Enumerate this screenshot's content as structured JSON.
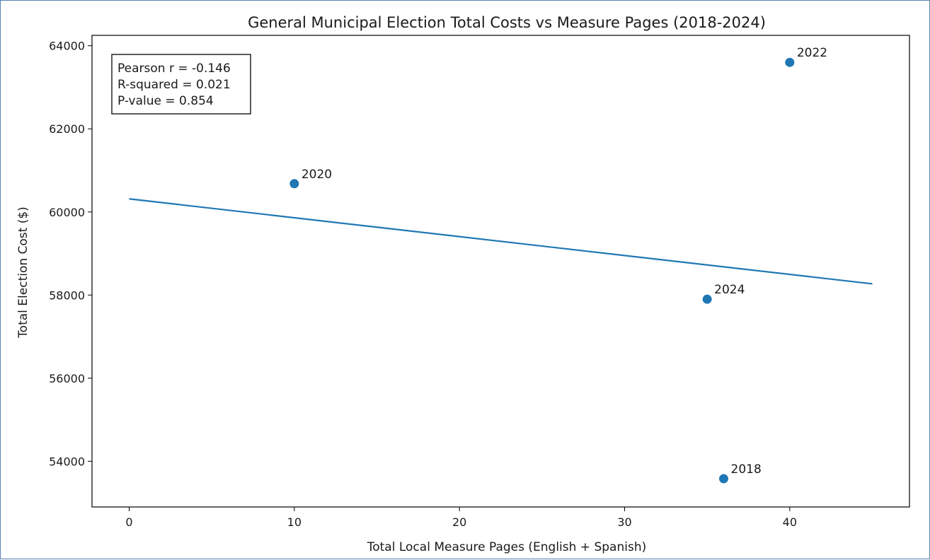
{
  "chart_data": {
    "type": "scatter",
    "title": "General Municipal Election Total Costs vs Measure Pages (2018-2024)",
    "xlabel": "Total Local Measure Pages (English + Spanish)",
    "ylabel": "Total Election Cost ($)",
    "xlim": [
      -2.25,
      47.25
    ],
    "ylim": [
      52900,
      64250
    ],
    "x_ticks": [
      0,
      10,
      20,
      30,
      40
    ],
    "y_ticks": [
      54000,
      56000,
      58000,
      60000,
      62000,
      64000
    ],
    "points": [
      {
        "label": "2018",
        "x": 36,
        "y": 53580
      },
      {
        "label": "2020",
        "x": 10,
        "y": 60680
      },
      {
        "label": "2022",
        "x": 40,
        "y": 63600
      },
      {
        "label": "2024",
        "x": 35,
        "y": 57900
      }
    ],
    "trendline": {
      "x": [
        0,
        45
      ],
      "y": [
        60315,
        58270
      ]
    },
    "stats": [
      "Pearson r = -0.146",
      "R-squared = 0.021",
      "P-value = 0.854"
    ],
    "grid": false,
    "point_color": "#1f77b4",
    "line_color": "#1f77b4"
  }
}
